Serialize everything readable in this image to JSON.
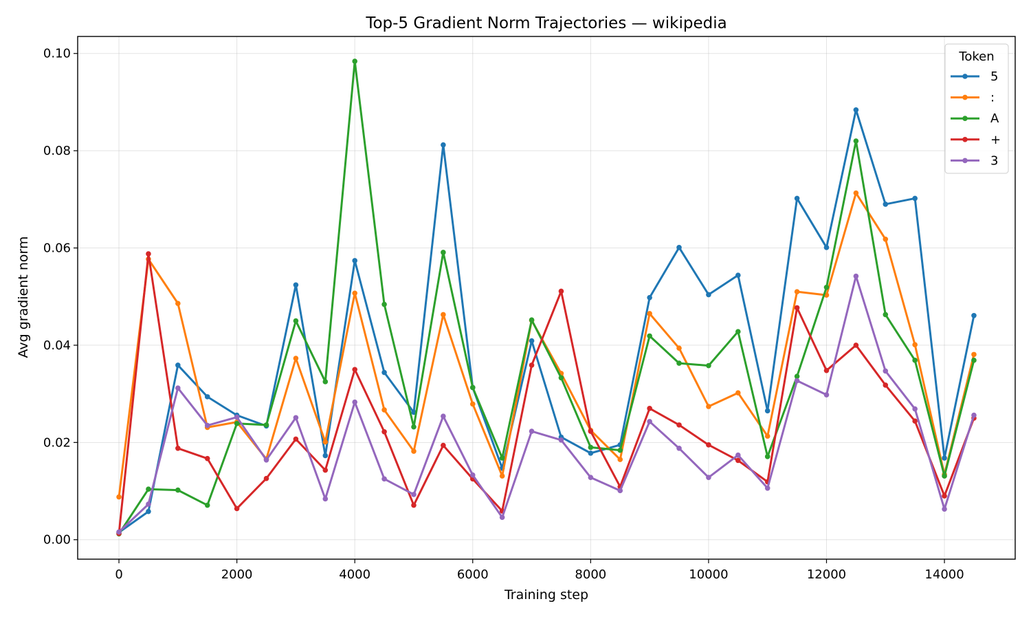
{
  "chart_data": {
    "type": "line",
    "title": "Top-5 Gradient Norm Trajectories — wikipedia",
    "xlabel": "Training step",
    "ylabel": "Avg gradient norm",
    "xlim": [
      -700,
      15200
    ],
    "ylim": [
      -0.004,
      0.1035
    ],
    "xticks": [
      0,
      2000,
      4000,
      6000,
      8000,
      10000,
      12000,
      14000
    ],
    "xtick_labels": [
      "0",
      "2000",
      "4000",
      "6000",
      "8000",
      "10000",
      "12000",
      "14000"
    ],
    "yticks": [
      0.0,
      0.02,
      0.04,
      0.06,
      0.08,
      0.1
    ],
    "ytick_labels": [
      "0.00",
      "0.02",
      "0.04",
      "0.06",
      "0.08",
      "0.10"
    ],
    "grid": true,
    "legend_title": "Token",
    "legend_position": "top-right",
    "x": [
      0,
      500,
      1000,
      1500,
      2000,
      2500,
      3000,
      3500,
      4000,
      4500,
      5000,
      5500,
      6000,
      6500,
      7000,
      7500,
      8000,
      8500,
      9000,
      9500,
      10000,
      10500,
      11000,
      11500,
      12000,
      12500,
      13000,
      13500,
      14000,
      14500
    ],
    "series": [
      {
        "name": "5",
        "color": "#1f77b4",
        "values": [
          0.0015,
          0.0058,
          0.0359,
          0.0294,
          0.0256,
          0.0234,
          0.0524,
          0.0173,
          0.0574,
          0.0344,
          0.0262,
          0.0812,
          0.0313,
          0.0147,
          0.0409,
          0.0211,
          0.0178,
          0.0195,
          0.0498,
          0.0601,
          0.0504,
          0.0544,
          0.0265,
          0.0702,
          0.0601,
          0.0884,
          0.069,
          0.0702,
          0.0168,
          0.0461
        ]
      },
      {
        "name": ":",
        "color": "#ff7f0e",
        "values": [
          0.0088,
          0.0577,
          0.0486,
          0.0231,
          0.0242,
          0.0166,
          0.0373,
          0.0201,
          0.0507,
          0.0267,
          0.0182,
          0.0463,
          0.0279,
          0.0131,
          0.0451,
          0.0342,
          0.0225,
          0.0165,
          0.0465,
          0.0394,
          0.0274,
          0.0302,
          0.0213,
          0.051,
          0.0503,
          0.0713,
          0.0618,
          0.0401,
          0.0134,
          0.0381
        ]
      },
      {
        "name": "A",
        "color": "#2ca02c",
        "values": [
          0.0012,
          0.0104,
          0.0102,
          0.0071,
          0.0239,
          0.0236,
          0.045,
          0.0325,
          0.0984,
          0.0484,
          0.0232,
          0.0591,
          0.0313,
          0.0168,
          0.0452,
          0.0333,
          0.019,
          0.0184,
          0.0419,
          0.0363,
          0.0358,
          0.0428,
          0.0171,
          0.0336,
          0.0519,
          0.082,
          0.0463,
          0.0369,
          0.0131,
          0.0369
        ]
      },
      {
        "name": "+",
        "color": "#d62728",
        "values": [
          0.0013,
          0.0588,
          0.0188,
          0.0167,
          0.0064,
          0.0126,
          0.0207,
          0.0143,
          0.035,
          0.0222,
          0.0071,
          0.0194,
          0.0125,
          0.0059,
          0.0359,
          0.0511,
          0.0223,
          0.0109,
          0.027,
          0.0236,
          0.0195,
          0.0163,
          0.0119,
          0.0477,
          0.0348,
          0.04,
          0.0318,
          0.0244,
          0.009,
          0.025
        ]
      },
      {
        "name": "3",
        "color": "#9467bd",
        "values": [
          0.0016,
          0.0073,
          0.0312,
          0.0235,
          0.0252,
          0.0164,
          0.0251,
          0.0084,
          0.0283,
          0.0125,
          0.0093,
          0.0254,
          0.0133,
          0.0046,
          0.0223,
          0.0205,
          0.0128,
          0.0101,
          0.0243,
          0.0188,
          0.0128,
          0.0174,
          0.0106,
          0.0327,
          0.0298,
          0.0542,
          0.0347,
          0.0269,
          0.0063,
          0.0256
        ]
      }
    ]
  }
}
